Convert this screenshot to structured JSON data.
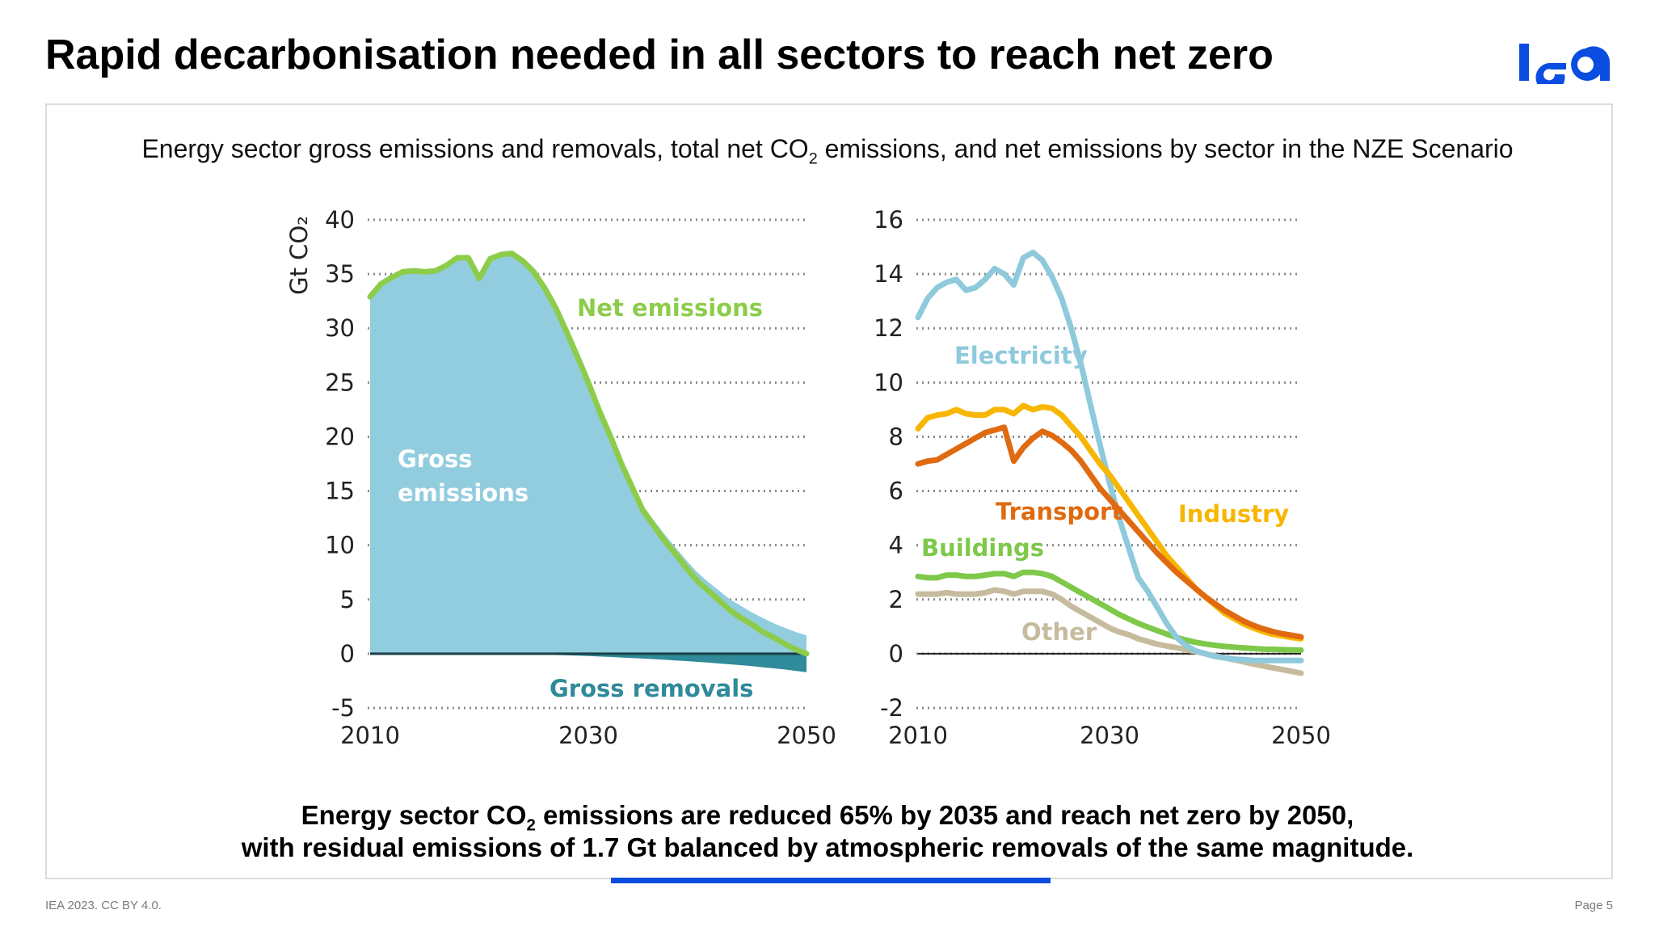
{
  "header": {
    "title": "Rapid decarbonisation needed in all sectors to reach net zero",
    "logo_text": "iea"
  },
  "subtitle": {
    "pre": "Energy sector gross emissions and removals, total net CO",
    "sub": "2",
    "post": " emissions, and net emissions by sector in the NZE Scenario"
  },
  "caption": {
    "line1_pre": "Energy sector CO",
    "line1_sub": "2",
    "line1_post": " emissions are reduced 65% by 2035 and reach net zero by 2050,",
    "line2": "with residual emissions of 1.7 Gt balanced by atmospheric removals of the same magnitude."
  },
  "footer": {
    "left": "IEA 2023. CC BY 4.0.",
    "right": "Page 5"
  },
  "colors": {
    "accent_blue": "#0b4de0",
    "gross_emissions": "#92cddf",
    "gross_removals": "#2f8a99",
    "net_emissions": "#8dcc4a",
    "electricity": "#8ec9dc",
    "industry": "#f7b600",
    "transport": "#e06a10",
    "buildings": "#7ec84a",
    "other": "#c6bb9d"
  },
  "chart_data": [
    {
      "type": "area",
      "ylabel": "Gt CO₂",
      "ylim": [
        -5,
        40
      ],
      "yticks": [
        -5,
        0,
        5,
        10,
        15,
        20,
        25,
        30,
        35,
        40
      ],
      "xticks": [
        2010,
        2030,
        2050
      ],
      "grid": "horizontal dotted",
      "x": [
        2010,
        2011,
        2012,
        2013,
        2014,
        2015,
        2016,
        2017,
        2018,
        2019,
        2020,
        2021,
        2022,
        2023,
        2024,
        2025,
        2026,
        2027,
        2028,
        2029,
        2030,
        2031,
        2032,
        2033,
        2034,
        2035,
        2036,
        2037,
        2038,
        2039,
        2040,
        2041,
        2042,
        2043,
        2044,
        2045,
        2046,
        2047,
        2048,
        2049,
        2050
      ],
      "series": [
        {
          "name": "Gross emissions",
          "kind": "area",
          "values": [
            33.0,
            34.2,
            34.8,
            35.3,
            35.4,
            35.3,
            35.4,
            35.9,
            36.6,
            36.6,
            34.7,
            36.5,
            36.9,
            37.0,
            36.3,
            35.3,
            33.8,
            32.0,
            29.9,
            27.6,
            25.2,
            22.7,
            20.4,
            18.0,
            15.8,
            13.7,
            12.3,
            11.0,
            9.8,
            8.6,
            7.5,
            6.6,
            5.8,
            5.0,
            4.4,
            3.8,
            3.3,
            2.8,
            2.4,
            2.0,
            1.7
          ]
        },
        {
          "name": "Gross removals",
          "kind": "area",
          "values": [
            -0.1,
            -0.1,
            -0.1,
            -0.1,
            -0.1,
            -0.1,
            -0.1,
            -0.1,
            -0.1,
            -0.1,
            -0.1,
            -0.1,
            -0.1,
            -0.1,
            -0.1,
            -0.1,
            -0.1,
            -0.12,
            -0.15,
            -0.18,
            -0.22,
            -0.26,
            -0.3,
            -0.35,
            -0.4,
            -0.45,
            -0.5,
            -0.56,
            -0.62,
            -0.68,
            -0.75,
            -0.82,
            -0.9,
            -0.98,
            -1.06,
            -1.15,
            -1.25,
            -1.35,
            -1.45,
            -1.58,
            -1.7
          ]
        },
        {
          "name": "Net emissions",
          "kind": "line",
          "values": [
            32.9,
            34.1,
            34.7,
            35.2,
            35.3,
            35.2,
            35.3,
            35.8,
            36.5,
            36.5,
            34.6,
            36.4,
            36.8,
            36.9,
            36.2,
            35.2,
            33.7,
            31.9,
            29.7,
            27.4,
            25.0,
            22.4,
            20.1,
            17.6,
            15.4,
            13.2,
            11.8,
            10.4,
            9.2,
            7.9,
            6.7,
            5.8,
            4.9,
            4.0,
            3.3,
            2.7,
            2.0,
            1.5,
            0.9,
            0.4,
            0.0
          ]
        }
      ],
      "labels": {
        "net": "Net emissions",
        "gross_line1": "Gross",
        "gross_line2": "emissions",
        "removals": "Gross removals"
      }
    },
    {
      "type": "line",
      "ylim": [
        -2,
        16
      ],
      "yticks": [
        -2,
        0,
        2,
        4,
        6,
        8,
        10,
        12,
        14,
        16
      ],
      "xticks": [
        2010,
        2030,
        2050
      ],
      "grid": "horizontal dotted",
      "x": [
        2010,
        2011,
        2012,
        2013,
        2014,
        2015,
        2016,
        2017,
        2018,
        2019,
        2020,
        2021,
        2022,
        2023,
        2024,
        2025,
        2026,
        2027,
        2028,
        2029,
        2030,
        2031,
        2032,
        2033,
        2034,
        2035,
        2036,
        2037,
        2038,
        2039,
        2040,
        2041,
        2042,
        2043,
        2044,
        2045,
        2046,
        2047,
        2048,
        2049,
        2050
      ],
      "series": [
        {
          "name": "Electricity",
          "values": [
            12.4,
            13.1,
            13.5,
            13.7,
            13.8,
            13.4,
            13.5,
            13.8,
            14.2,
            14.0,
            13.6,
            14.6,
            14.8,
            14.5,
            13.9,
            13.1,
            12.0,
            10.7,
            9.2,
            7.7,
            6.3,
            5.0,
            3.9,
            2.8,
            2.3,
            1.7,
            1.1,
            0.6,
            0.3,
            0.1,
            0.0,
            -0.1,
            -0.15,
            -0.2,
            -0.22,
            -0.25,
            -0.25,
            -0.25,
            -0.25,
            -0.25,
            -0.25
          ]
        },
        {
          "name": "Industry",
          "values": [
            8.3,
            8.7,
            8.8,
            8.85,
            9.0,
            8.85,
            8.8,
            8.8,
            9.0,
            9.0,
            8.85,
            9.15,
            9.0,
            9.1,
            9.05,
            8.8,
            8.4,
            8.0,
            7.5,
            7.0,
            6.6,
            6.1,
            5.6,
            5.1,
            4.6,
            4.1,
            3.6,
            3.2,
            2.8,
            2.4,
            2.1,
            1.8,
            1.5,
            1.3,
            1.1,
            0.95,
            0.82,
            0.72,
            0.66,
            0.6,
            0.55
          ]
        },
        {
          "name": "Transport",
          "values": [
            7.0,
            7.1,
            7.15,
            7.35,
            7.55,
            7.75,
            7.95,
            8.15,
            8.25,
            8.35,
            7.1,
            7.6,
            7.95,
            8.2,
            8.05,
            7.8,
            7.5,
            7.1,
            6.6,
            6.1,
            5.7,
            5.3,
            4.9,
            4.5,
            4.1,
            3.7,
            3.35,
            3.0,
            2.7,
            2.4,
            2.1,
            1.85,
            1.6,
            1.4,
            1.2,
            1.05,
            0.92,
            0.82,
            0.74,
            0.68,
            0.62
          ]
        },
        {
          "name": "Buildings",
          "values": [
            2.85,
            2.8,
            2.8,
            2.9,
            2.9,
            2.85,
            2.85,
            2.9,
            2.95,
            2.95,
            2.85,
            3.0,
            3.0,
            2.95,
            2.85,
            2.65,
            2.45,
            2.25,
            2.05,
            1.85,
            1.65,
            1.45,
            1.28,
            1.12,
            0.98,
            0.85,
            0.72,
            0.6,
            0.5,
            0.42,
            0.36,
            0.31,
            0.27,
            0.24,
            0.21,
            0.19,
            0.17,
            0.16,
            0.15,
            0.14,
            0.13
          ]
        },
        {
          "name": "Other",
          "values": [
            2.2,
            2.2,
            2.2,
            2.25,
            2.2,
            2.2,
            2.2,
            2.25,
            2.35,
            2.3,
            2.2,
            2.3,
            2.3,
            2.3,
            2.2,
            2.0,
            1.75,
            1.55,
            1.35,
            1.15,
            0.95,
            0.8,
            0.7,
            0.55,
            0.45,
            0.35,
            0.28,
            0.22,
            0.15,
            0.08,
            0.0,
            -0.08,
            -0.15,
            -0.22,
            -0.3,
            -0.38,
            -0.45,
            -0.52,
            -0.58,
            -0.65,
            -0.72
          ]
        }
      ]
    }
  ]
}
